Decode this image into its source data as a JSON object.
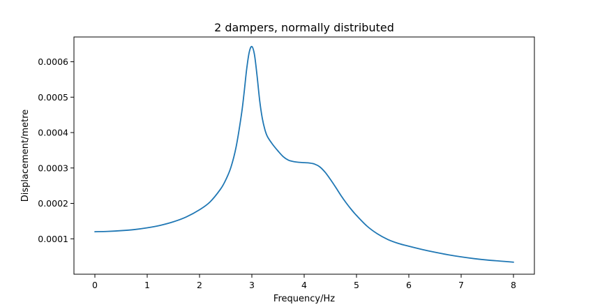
{
  "chart_data": {
    "type": "line",
    "title": "2 dampers, normally distributed",
    "xlabel": "Frequency/Hz",
    "ylabel": "Displacement/metre",
    "xlim": [
      -0.4,
      8.4
    ],
    "ylim": [
      0.0,
      0.00067
    ],
    "xticks": [
      0,
      1,
      2,
      3,
      4,
      5,
      6,
      7,
      8
    ],
    "xtick_labels": [
      "0",
      "1",
      "2",
      "3",
      "4",
      "5",
      "6",
      "7",
      "8"
    ],
    "yticks": [
      0.0001,
      0.0002,
      0.0003,
      0.0004,
      0.0005,
      0.0006
    ],
    "ytick_labels": [
      "0.0001",
      "0.0002",
      "0.0003",
      "0.0004",
      "0.0005",
      "0.0006"
    ],
    "grid": false,
    "color": "#1f77b4",
    "series": [
      {
        "x": [
          0,
          0.25,
          0.5,
          0.75,
          1.0,
          1.25,
          1.5,
          1.75,
          2.0,
          2.2,
          2.4,
          2.5,
          2.6,
          2.7,
          2.8,
          2.85,
          2.9,
          2.95,
          3.0,
          3.05,
          3.1,
          3.15,
          3.2,
          3.25,
          3.3,
          3.4,
          3.5,
          3.6,
          3.7,
          3.8,
          3.9,
          4.0,
          4.1,
          4.2,
          4.3,
          4.4,
          4.5,
          4.6,
          4.7,
          4.8,
          4.9,
          5.0,
          5.2,
          5.4,
          5.6,
          5.8,
          6.0,
          6.25,
          6.5,
          6.75,
          7.0,
          7.25,
          7.5,
          7.75,
          8.0
        ],
        "values": [
          0.00012,
          0.000121,
          0.000123,
          0.000126,
          0.000131,
          0.000138,
          0.000148,
          0.000162,
          0.000182,
          0.000204,
          0.00024,
          0.000266,
          0.000302,
          0.00036,
          0.00045,
          0.00051,
          0.000578,
          0.000627,
          0.000643,
          0.00062,
          0.00056,
          0.00049,
          0.00044,
          0.000408,
          0.000388,
          0.000366,
          0.000348,
          0.000332,
          0.000322,
          0.000318,
          0.000316,
          0.000315,
          0.000314,
          0.000311,
          0.000303,
          0.000288,
          0.000268,
          0.000246,
          0.000223,
          0.000202,
          0.000183,
          0.000166,
          0.000136,
          0.000114,
          9.8e-05,
          8.7e-05,
          7.9e-05,
          7e-05,
          6.2e-05,
          5.5e-05,
          4.9e-05,
          4.4e-05,
          4e-05,
          3.7e-05,
          3.4e-05
        ]
      }
    ]
  }
}
